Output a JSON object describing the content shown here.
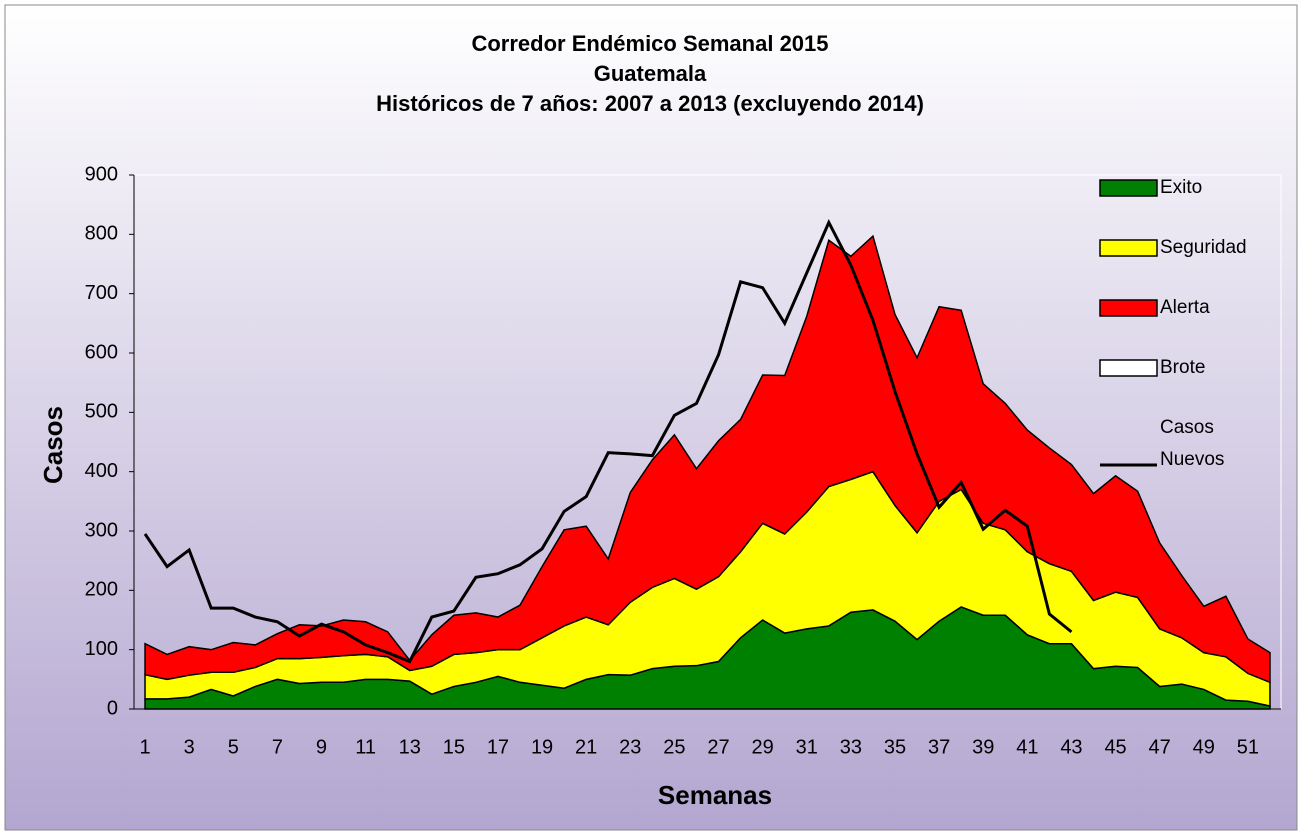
{
  "chart_data": {
    "type": "area",
    "title": [
      "Corredor Endémico Semanal 2015",
      "Guatemala",
      "Históricos de 7 años: 2007 a 2013 (excluyendo 2014)"
    ],
    "x_label": "Semanas",
    "y_label": "Casos",
    "categories": [
      "1",
      null,
      "3",
      null,
      "5",
      null,
      "7",
      null,
      "9",
      null,
      "11",
      null,
      "13",
      null,
      "15",
      null,
      "17",
      null,
      "19",
      null,
      "21",
      null,
      "23",
      null,
      "25",
      null,
      "27",
      null,
      "29",
      null,
      "31",
      null,
      "33",
      null,
      "35",
      null,
      "37",
      null,
      "39",
      null,
      "41",
      null,
      "43",
      null,
      "45",
      null,
      "47",
      null,
      "49",
      null,
      "51",
      null
    ],
    "ylim": [
      0,
      900
    ],
    "yticks": [
      0,
      100,
      200,
      300,
      400,
      500,
      600,
      700,
      800,
      900
    ],
    "stacked": true,
    "series": [
      {
        "name": "Exito",
        "color": "#008000",
        "type": "area",
        "values": [
          17,
          17,
          20,
          33,
          22,
          38,
          50,
          43,
          45,
          45,
          50,
          50,
          47,
          25,
          38,
          45,
          55,
          45,
          40,
          35,
          50,
          58,
          57,
          68,
          72,
          73,
          80,
          120,
          150,
          128,
          135,
          140,
          163,
          167,
          148,
          117,
          148,
          172,
          158,
          158,
          125,
          110,
          110,
          68,
          72,
          70,
          38,
          42,
          33,
          15,
          13,
          5
        ]
      },
      {
        "name": "Seguridad",
        "color": "#ffff00",
        "type": "area",
        "values": [
          41,
          33,
          37,
          29,
          40,
          32,
          35,
          42,
          42,
          45,
          42,
          38,
          18,
          47,
          54,
          50,
          45,
          55,
          80,
          105,
          105,
          84,
          123,
          137,
          148,
          129,
          143,
          145,
          163,
          167,
          197,
          235,
          224,
          233,
          195,
          180,
          202,
          198,
          155,
          144,
          140,
          135,
          122,
          115,
          125,
          118,
          97,
          78,
          62,
          73,
          47,
          40
        ]
      },
      {
        "name": "Alerta",
        "color": "#ff0000",
        "type": "area",
        "values": [
          52,
          42,
          48,
          38,
          50,
          38,
          42,
          57,
          53,
          60,
          55,
          42,
          17,
          53,
          66,
          67,
          55,
          75,
          120,
          162,
          153,
          111,
          185,
          215,
          242,
          203,
          229,
          223,
          250,
          267,
          330,
          415,
          376,
          397,
          322,
          295,
          328,
          302,
          235,
          213,
          205,
          195,
          180,
          180,
          196,
          179,
          145,
          105,
          78,
          102,
          58,
          50
        ]
      },
      {
        "name": "Brote",
        "color": "#ffffff",
        "type": "area",
        "values": [
          null,
          null,
          null,
          null,
          null,
          null,
          null,
          null,
          null,
          null,
          null,
          null,
          null,
          null,
          null,
          null,
          null,
          null,
          null,
          null,
          null,
          null,
          null,
          null,
          null,
          null,
          null,
          null,
          null,
          null,
          null,
          null,
          null,
          null,
          null,
          null,
          null,
          null,
          null,
          null,
          null,
          null,
          null,
          null,
          null,
          null,
          null,
          null,
          null,
          null,
          null,
          null
        ]
      },
      {
        "name": "Casos Nuevos",
        "color": "#000000",
        "type": "line",
        "values": [
          295,
          240,
          268,
          170,
          170,
          155,
          147,
          123,
          143,
          130,
          108,
          95,
          80,
          155,
          165,
          222,
          228,
          243,
          270,
          333,
          358,
          432,
          430,
          427,
          495,
          515,
          597,
          720,
          710,
          650,
          735,
          820,
          748,
          655,
          535,
          430,
          340,
          382,
          303,
          335,
          308,
          160,
          130,
          null,
          null,
          null,
          null,
          null,
          null,
          null,
          null,
          null
        ]
      }
    ]
  }
}
